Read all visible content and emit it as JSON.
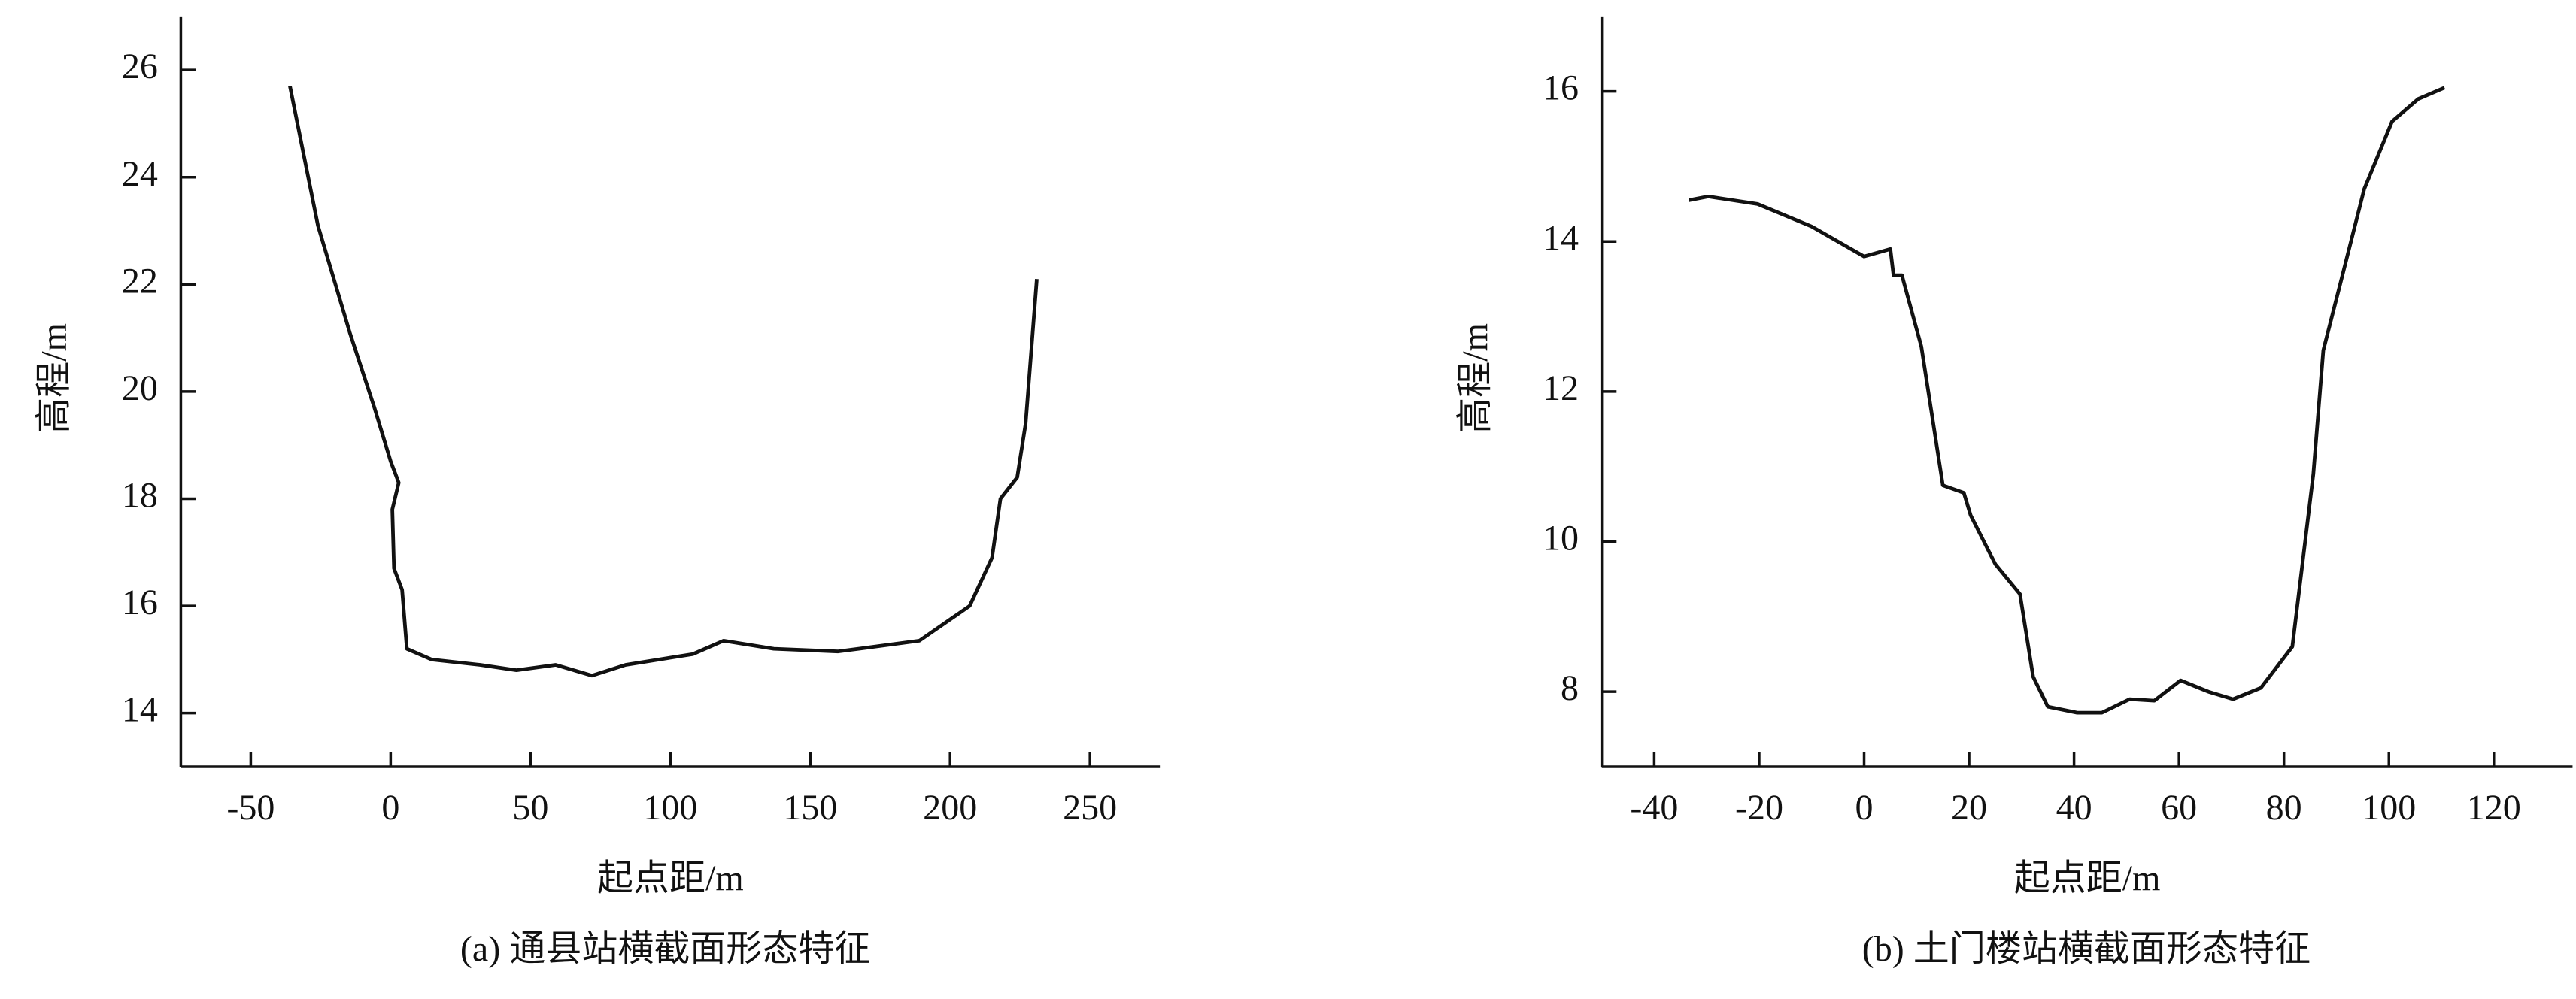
{
  "chart_data": [
    {
      "type": "line",
      "xlabel": "起点距/m",
      "ylabel": "高程/m",
      "caption": "(a) 通县站横截面形态特征",
      "xlim": [
        -75,
        275
      ],
      "ylim": [
        13,
        27
      ],
      "xticks": [
        -50,
        0,
        50,
        100,
        150,
        200,
        250
      ],
      "yticks": [
        14,
        16,
        18,
        20,
        22,
        24,
        26
      ],
      "color": "#111111",
      "x": [
        -36,
        -26,
        -14.6,
        -5.8,
        0,
        2.9,
        0.6,
        1.2,
        4.1,
        5.8,
        14.6,
        32,
        45,
        59,
        72,
        84,
        108,
        119,
        137,
        160,
        189,
        207,
        215,
        218,
        224,
        227,
        231
      ],
      "values": [
        25.7,
        23.1,
        21.1,
        19.7,
        18.7,
        18.3,
        17.8,
        16.7,
        16.3,
        15.2,
        15.0,
        14.9,
        14.8,
        14.9,
        14.7,
        14.9,
        15.1,
        15.35,
        15.2,
        15.15,
        15.35,
        16.0,
        16.9,
        18.0,
        18.4,
        19.4,
        22.1
      ]
    },
    {
      "type": "line",
      "xlabel": "起点距/m",
      "ylabel": "高程/m",
      "caption": "(b) 土门楼站横截面形态特征",
      "xlim": [
        -50,
        135
      ],
      "ylim": [
        7,
        17
      ],
      "xticks": [
        -40,
        -20,
        0,
        20,
        40,
        60,
        80,
        100,
        120
      ],
      "yticks": [
        8,
        10,
        12,
        14,
        16
      ],
      "color": "#111111",
      "x": [
        -33.4,
        -29.7,
        -20.3,
        -10,
        0,
        5,
        5.6,
        7.2,
        10.9,
        15,
        19,
        20.3,
        25,
        29.7,
        32.2,
        35,
        40.6,
        45.3,
        50.6,
        55.3,
        60.3,
        65.6,
        70.3,
        75.6,
        81.6,
        85.6,
        87.5,
        90.6,
        95.3,
        100.6,
        105.6,
        110.6
      ],
      "values": [
        14.55,
        14.6,
        14.5,
        14.2,
        13.8,
        13.9,
        13.55,
        13.55,
        12.6,
        10.75,
        10.65,
        10.35,
        9.7,
        9.3,
        8.2,
        7.8,
        7.72,
        7.72,
        7.9,
        7.88,
        8.15,
        8.0,
        7.9,
        8.05,
        8.6,
        10.9,
        12.55,
        13.4,
        14.7,
        15.6,
        15.9,
        16.05
      ]
    }
  ]
}
